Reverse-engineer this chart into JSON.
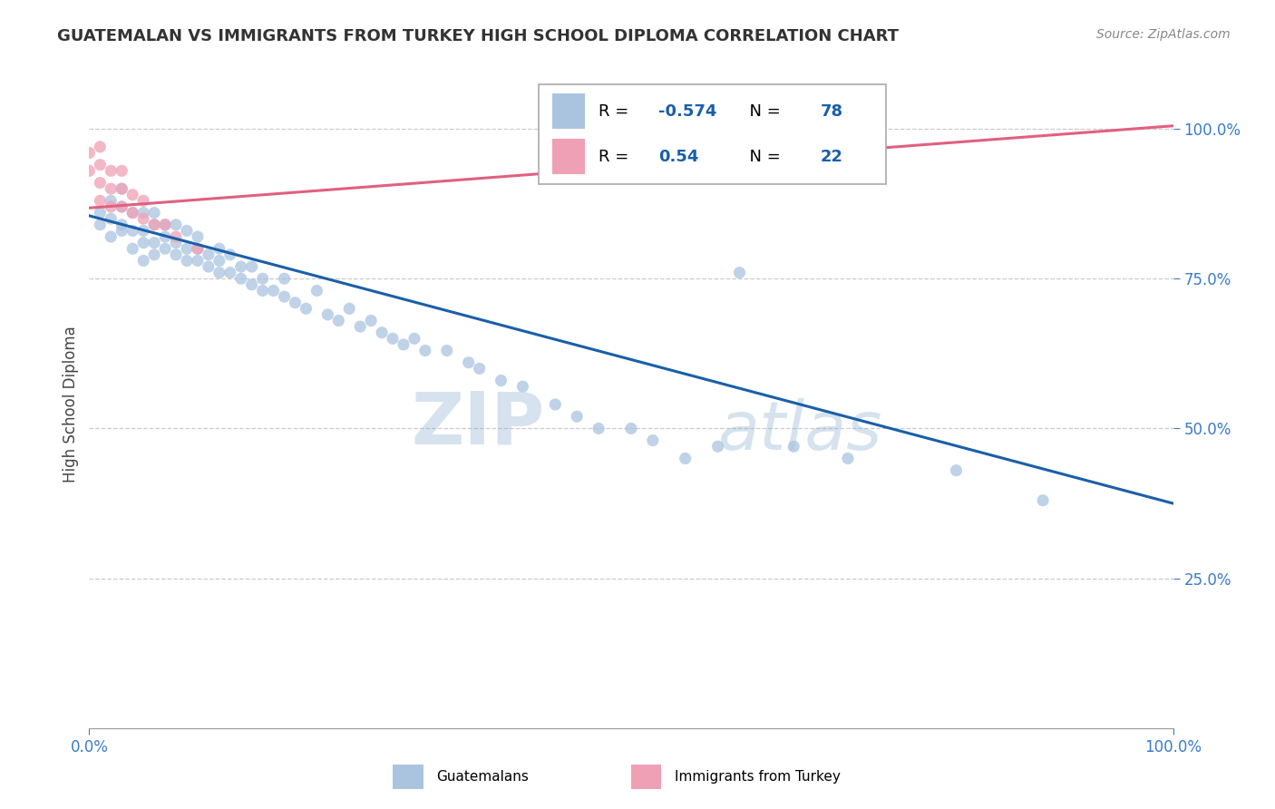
{
  "title": "GUATEMALAN VS IMMIGRANTS FROM TURKEY HIGH SCHOOL DIPLOMA CORRELATION CHART",
  "source": "Source: ZipAtlas.com",
  "ylabel": "High School Diploma",
  "blue_label": "Guatemalans",
  "pink_label": "Immigrants from Turkey",
  "blue_R": -0.574,
  "blue_N": 78,
  "pink_R": 0.54,
  "pink_N": 22,
  "blue_color": "#aac4e0",
  "pink_color": "#f0a0b5",
  "blue_line_color": "#1a5faa",
  "pink_line_color": "#e06080",
  "watermark_zip": "ZIP",
  "watermark_atlas": "atlas",
  "xlim": [
    0.0,
    1.0
  ],
  "ylim": [
    0.0,
    1.08
  ],
  "ytick_vals": [
    0.25,
    0.5,
    0.75,
    1.0
  ],
  "ytick_labels": [
    "25.0%",
    "50.0%",
    "75.0%",
    "100.0%"
  ],
  "xtick_vals": [
    0.0,
    1.0
  ],
  "xtick_labels": [
    "0.0%",
    "100.0%"
  ],
  "blue_scatter_x": [
    0.01,
    0.01,
    0.02,
    0.02,
    0.02,
    0.03,
    0.03,
    0.03,
    0.03,
    0.04,
    0.04,
    0.04,
    0.05,
    0.05,
    0.05,
    0.05,
    0.06,
    0.06,
    0.06,
    0.06,
    0.07,
    0.07,
    0.07,
    0.08,
    0.08,
    0.08,
    0.09,
    0.09,
    0.09,
    0.1,
    0.1,
    0.1,
    0.11,
    0.11,
    0.12,
    0.12,
    0.12,
    0.13,
    0.13,
    0.14,
    0.14,
    0.15,
    0.15,
    0.16,
    0.16,
    0.17,
    0.18,
    0.18,
    0.19,
    0.2,
    0.21,
    0.22,
    0.23,
    0.24,
    0.25,
    0.26,
    0.27,
    0.28,
    0.29,
    0.3,
    0.31,
    0.33,
    0.35,
    0.36,
    0.38,
    0.4,
    0.43,
    0.45,
    0.47,
    0.5,
    0.52,
    0.55,
    0.58,
    0.6,
    0.65,
    0.7,
    0.8,
    0.88
  ],
  "blue_scatter_y": [
    0.84,
    0.86,
    0.82,
    0.85,
    0.88,
    0.84,
    0.83,
    0.87,
    0.9,
    0.8,
    0.83,
    0.86,
    0.78,
    0.81,
    0.83,
    0.86,
    0.79,
    0.81,
    0.84,
    0.86,
    0.8,
    0.82,
    0.84,
    0.79,
    0.81,
    0.84,
    0.78,
    0.8,
    0.83,
    0.78,
    0.8,
    0.82,
    0.77,
    0.79,
    0.76,
    0.78,
    0.8,
    0.76,
    0.79,
    0.75,
    0.77,
    0.74,
    0.77,
    0.73,
    0.75,
    0.73,
    0.72,
    0.75,
    0.71,
    0.7,
    0.73,
    0.69,
    0.68,
    0.7,
    0.67,
    0.68,
    0.66,
    0.65,
    0.64,
    0.65,
    0.63,
    0.63,
    0.61,
    0.6,
    0.58,
    0.57,
    0.54,
    0.52,
    0.5,
    0.5,
    0.48,
    0.45,
    0.47,
    0.76,
    0.47,
    0.45,
    0.43,
    0.38
  ],
  "pink_scatter_x": [
    0.0,
    0.0,
    0.01,
    0.01,
    0.01,
    0.01,
    0.02,
    0.02,
    0.02,
    0.03,
    0.03,
    0.03,
    0.04,
    0.04,
    0.05,
    0.05,
    0.06,
    0.07,
    0.08,
    0.1,
    0.63,
    0.68
  ],
  "pink_scatter_y": [
    0.93,
    0.96,
    0.88,
    0.91,
    0.94,
    0.97,
    0.87,
    0.9,
    0.93,
    0.87,
    0.9,
    0.93,
    0.86,
    0.89,
    0.85,
    0.88,
    0.84,
    0.84,
    0.82,
    0.8,
    0.99,
    1.01
  ],
  "blue_line_x0": 0.0,
  "blue_line_y0": 0.855,
  "blue_line_x1": 1.0,
  "blue_line_y1": 0.375,
  "pink_line_x0": 0.0,
  "pink_line_y0": 0.868,
  "pink_line_x1": 1.0,
  "pink_line_y1": 1.005,
  "marker_size": 90,
  "figsize": [
    14.06,
    8.92
  ],
  "dpi": 100,
  "legend_blue_text": "R = -0.574   N = 78",
  "legend_pink_text": "R =  0.540   N = 22"
}
